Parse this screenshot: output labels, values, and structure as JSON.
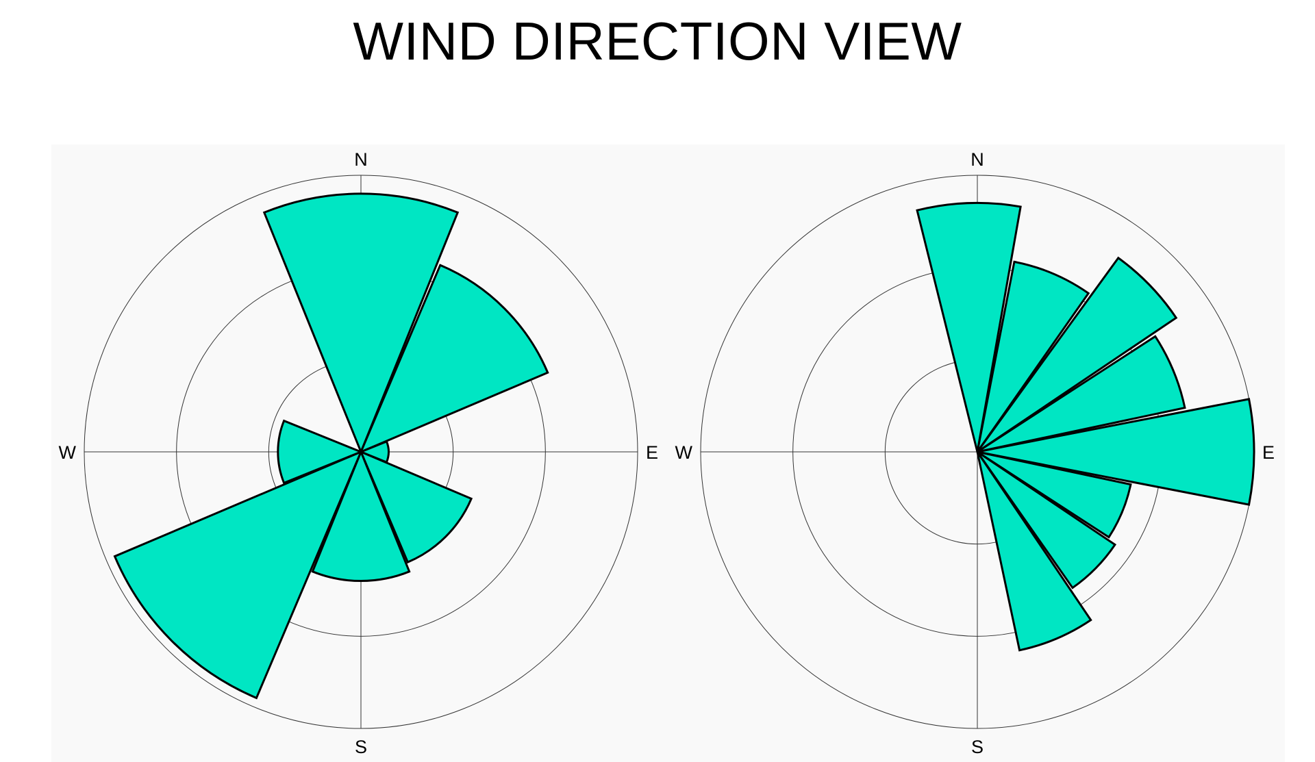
{
  "title": "WIND DIRECTION VIEW",
  "chart_data": [
    {
      "type": "polar-bar",
      "directions": [
        "N",
        "E",
        "S",
        "W"
      ],
      "r_max": 3,
      "ring_values": [
        1,
        2,
        3
      ],
      "grid": true,
      "color": "#00e6c3",
      "sectors": [
        {
          "theta_start": 338,
          "theta_end": 22,
          "value": 2.8
        },
        {
          "theta_start": 23,
          "theta_end": 67,
          "value": 2.2
        },
        {
          "theta_start": 68,
          "theta_end": 112,
          "value": 0.3
        },
        {
          "theta_start": 113,
          "theta_end": 157,
          "value": 1.3
        },
        {
          "theta_start": 158,
          "theta_end": 202,
          "value": 1.4
        },
        {
          "theta_start": 203,
          "theta_end": 247,
          "value": 2.9
        },
        {
          "theta_start": 248,
          "theta_end": 292,
          "value": 0.9
        }
      ]
    },
    {
      "type": "polar-bar",
      "directions": [
        "N",
        "E",
        "S",
        "W"
      ],
      "r_max": 3,
      "ring_values": [
        1,
        2,
        3
      ],
      "grid": true,
      "color": "#00e6c3",
      "sectors": [
        {
          "theta_start": 346,
          "theta_end": 10,
          "value": 2.7
        },
        {
          "theta_start": 11,
          "theta_end": 35,
          "value": 2.1
        },
        {
          "theta_start": 36,
          "theta_end": 56,
          "value": 2.6
        },
        {
          "theta_start": 57,
          "theta_end": 78,
          "value": 2.3
        },
        {
          "theta_start": 79,
          "theta_end": 101,
          "value": 3.0
        },
        {
          "theta_start": 102,
          "theta_end": 123,
          "value": 1.7
        },
        {
          "theta_start": 124,
          "theta_end": 145,
          "value": 1.8
        },
        {
          "theta_start": 146,
          "theta_end": 168,
          "value": 2.2
        }
      ]
    }
  ]
}
